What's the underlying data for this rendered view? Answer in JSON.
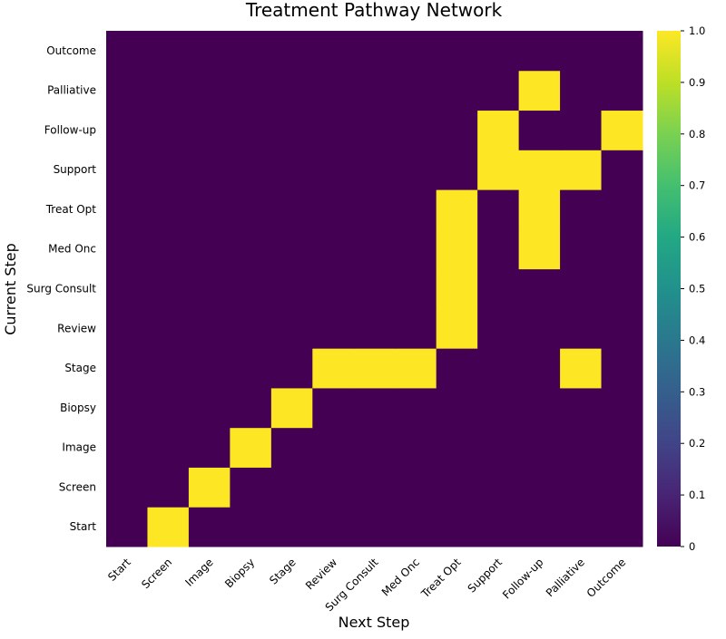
{
  "chart_data": {
    "type": "heatmap",
    "title": "Treatment Pathway Network",
    "xlabel": "Next Step",
    "ylabel": "Current Step",
    "x_categories": [
      "Start",
      "Screen",
      "Image",
      "Biopsy",
      "Stage",
      "Review",
      "Surg Consult",
      "Med Onc",
      "Treat Opt",
      "Support",
      "Follow-up",
      "Palliative",
      "Outcome"
    ],
    "y_categories": [
      "Start",
      "Screen",
      "Image",
      "Biopsy",
      "Stage",
      "Review",
      "Surg Consult",
      "Med Onc",
      "Treat Opt",
      "Support",
      "Follow-up",
      "Palliative",
      "Outcome"
    ],
    "values": [
      [
        0,
        1,
        0,
        0,
        0,
        0,
        0,
        0,
        0,
        0,
        0,
        0,
        0
      ],
      [
        0,
        0,
        1,
        0,
        0,
        0,
        0,
        0,
        0,
        0,
        0,
        0,
        0
      ],
      [
        0,
        0,
        0,
        1,
        0,
        0,
        0,
        0,
        0,
        0,
        0,
        0,
        0
      ],
      [
        0,
        0,
        0,
        0,
        1,
        0,
        0,
        0,
        0,
        0,
        0,
        0,
        0
      ],
      [
        0,
        0,
        0,
        0,
        0,
        1,
        1,
        1,
        0,
        0,
        0,
        1,
        0
      ],
      [
        0,
        0,
        0,
        0,
        0,
        0,
        0,
        0,
        1,
        0,
        0,
        0,
        0
      ],
      [
        0,
        0,
        0,
        0,
        0,
        0,
        0,
        0,
        1,
        0,
        0,
        0,
        0
      ],
      [
        0,
        0,
        0,
        0,
        0,
        0,
        0,
        0,
        1,
        0,
        1,
        0,
        0
      ],
      [
        0,
        0,
        0,
        0,
        0,
        0,
        0,
        0,
        1,
        0,
        1,
        0,
        0
      ],
      [
        0,
        0,
        0,
        0,
        0,
        0,
        0,
        0,
        0,
        1,
        1,
        1,
        0
      ],
      [
        0,
        0,
        0,
        0,
        0,
        0,
        0,
        0,
        0,
        1,
        0,
        0,
        1
      ],
      [
        0,
        0,
        0,
        0,
        0,
        0,
        0,
        0,
        0,
        0,
        1,
        0,
        0
      ],
      [
        0,
        0,
        0,
        0,
        0,
        0,
        0,
        0,
        0,
        0,
        0,
        0,
        0
      ]
    ],
    "colorbar": {
      "min": 0,
      "max": 1,
      "ticks": [
        "0",
        "0.1",
        "0.2",
        "0.3",
        "0.4",
        "0.5",
        "0.6",
        "0.7",
        "0.8",
        "0.9",
        "1.0"
      ],
      "colormap": "viridis"
    },
    "colors": {
      "low": "#440154",
      "high": "#fde725"
    },
    "grid": false
  }
}
